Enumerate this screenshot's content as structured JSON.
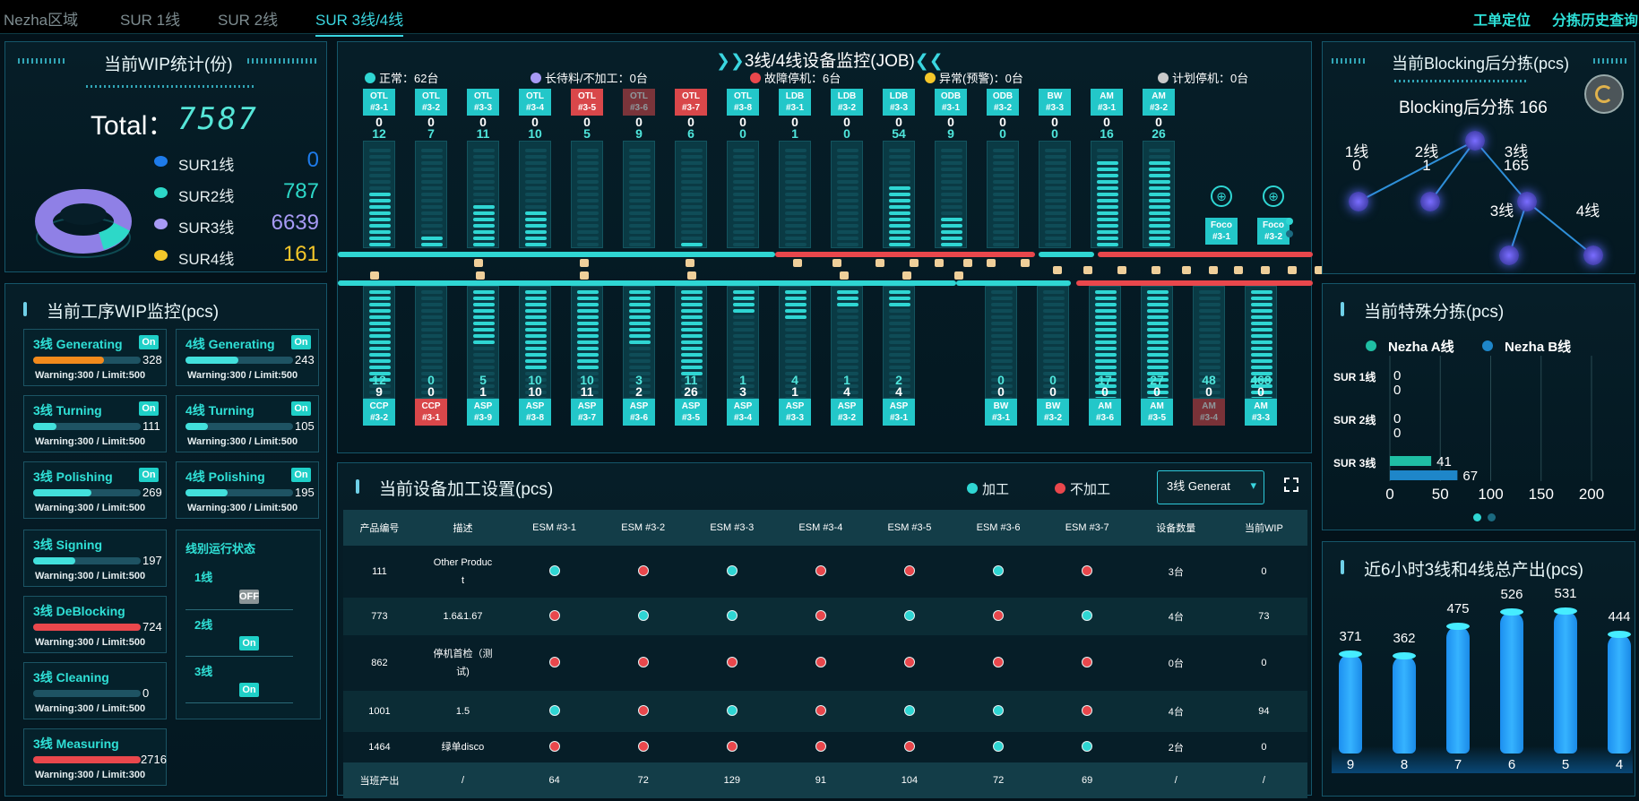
{
  "topbar": {
    "tabs": [
      "Nezha区域",
      "SUR 1线",
      "SUR 2线",
      "SUR 3线/4线"
    ],
    "links": [
      "工单定位",
      "分拣历史查询"
    ]
  },
  "wip": {
    "title": "当前WIP统计(份)",
    "total_label": "Total：",
    "total_value": "7587",
    "legend": [
      {
        "name": "SUR1线",
        "value": "0",
        "color": "#1e7bea"
      },
      {
        "name": "SUR2线",
        "value": "787",
        "color": "#2dd8c8"
      },
      {
        "name": "SUR3线",
        "value": "6639",
        "color": "#a79af5"
      },
      {
        "name": "SUR4线",
        "value": "161",
        "color": "#f5c72a"
      }
    ]
  },
  "process": {
    "title": "当前工序WIP监控(pcs)",
    "cards": [
      {
        "name": "3线 Generating",
        "value": "328",
        "fill": 0.66,
        "color": "#f28a1c",
        "sub": "Warning:300 / Limit:500",
        "state": "On"
      },
      {
        "name": "4线 Generating",
        "value": "243",
        "fill": 0.49,
        "color": "#42e0dc",
        "sub": "Warning:300 / Limit:500",
        "state": "On"
      },
      {
        "name": "3线 Turning",
        "value": "111",
        "fill": 0.22,
        "color": "#42e0dc",
        "sub": "Warning:300 / Limit:500",
        "state": "On"
      },
      {
        "name": "4线 Turning",
        "value": "105",
        "fill": 0.21,
        "color": "#42e0dc",
        "sub": "Warning:300 / Limit:500",
        "state": "On"
      },
      {
        "name": "3线 Polishing",
        "value": "269",
        "fill": 0.54,
        "color": "#42e0dc",
        "sub": "Warning:300 / Limit:500",
        "state": "On"
      },
      {
        "name": "4线 Polishing",
        "value": "195",
        "fill": 0.39,
        "color": "#42e0dc",
        "sub": "Warning:300 / Limit:500",
        "state": "On"
      },
      {
        "name": "3线 Signing",
        "value": "197",
        "fill": 0.39,
        "color": "#42e0dc",
        "sub": "Warning:300 / Limit:500",
        "state": ""
      },
      {
        "name": "3线 DeBlocking",
        "value": "724",
        "fill": 1.0,
        "color": "#e9474c",
        "sub": "Warning:300 / Limit:500",
        "state": ""
      },
      {
        "name": "3线 Cleaning",
        "value": "0",
        "fill": 0.0,
        "color": "#42e0dc",
        "sub": "Warning:300 / Limit:500",
        "state": ""
      },
      {
        "name": "3线 Measuring",
        "value": "2716",
        "fill": 1.0,
        "color": "#e9474c",
        "sub": "Warning:300 / Limit:300",
        "state": ""
      }
    ],
    "line_status": {
      "title": "线别运行状态",
      "lines": [
        {
          "name": "1线",
          "state": "OFF"
        },
        {
          "name": "2线",
          "state": "On"
        },
        {
          "name": "3线",
          "state": "On"
        }
      ]
    }
  },
  "monitor": {
    "title": "3线/4线设备监控(JOB)",
    "legend": [
      {
        "label": "正常：62台",
        "color": "#2fd6d3"
      },
      {
        "label": "长待料/不加工：0台",
        "color": "#a79af5"
      },
      {
        "label": "故障停机：6台",
        "color": "#e9474c"
      },
      {
        "label": "异常(预警)：0台",
        "color": "#f5c72a"
      },
      {
        "label": "计划停机：0台",
        "color": "#c9c9c9"
      }
    ],
    "top": [
      {
        "label": "OTL\n#3-1",
        "a": "0",
        "b": "12",
        "state": "normal",
        "fill": 0.7
      },
      {
        "label": "OTL\n#3-2",
        "a": "0",
        "b": "7",
        "state": "normal",
        "fill": 0.38
      },
      {
        "label": "OTL\n#3-3",
        "a": "0",
        "b": "11",
        "state": "normal",
        "fill": 0.63
      },
      {
        "label": "OTL\n#3-4",
        "a": "0",
        "b": "10",
        "state": "normal",
        "fill": 0.58
      },
      {
        "label": "OTL\n#3-5",
        "a": "0",
        "b": "5",
        "state": "fault",
        "fill": 0.28
      },
      {
        "label": "OTL\n#3-6",
        "a": "0",
        "b": "9",
        "state": "fault-dim",
        "fill": 0.0
      },
      {
        "label": "OTL\n#3-7",
        "a": "0",
        "b": "6",
        "state": "fault",
        "fill": 0.33
      },
      {
        "label": "OTL\n#3-8",
        "a": "0",
        "b": "0",
        "state": "normal",
        "fill": 0.0
      },
      {
        "label": "LDB\n#3-1",
        "a": "0",
        "b": "1",
        "state": "normal",
        "fill": 0.05
      },
      {
        "label": "LDB\n#3-2",
        "a": "0",
        "b": "0",
        "state": "normal",
        "fill": 0.0
      },
      {
        "label": "LDB\n#3-3",
        "a": "0",
        "b": "54",
        "state": "normal",
        "fill": 0.75
      },
      {
        "label": "ODB\n#3-1",
        "a": "0",
        "b": "9",
        "state": "normal",
        "fill": 0.5
      },
      {
        "label": "ODB\n#3-2",
        "a": "0",
        "b": "0",
        "state": "normal",
        "fill": 0.0
      },
      {
        "label": "BW\n#3-3",
        "a": "0",
        "b": "0",
        "state": "normal",
        "fill": 0.0
      },
      {
        "label": "AM\n#3-1",
        "a": "0",
        "b": "16",
        "state": "normal",
        "fill": 0.95
      },
      {
        "label": "AM\n#3-2",
        "a": "0",
        "b": "26",
        "state": "normal",
        "fill": 0.95
      }
    ],
    "foco": [
      "Foco\n#3-1",
      "Foco\n#3-2"
    ],
    "bottom": [
      {
        "label": "CCP\n#3-2",
        "a": "12",
        "b": "9",
        "state": "normal",
        "fill": 0.65
      },
      {
        "label": "CCP\n#3-1",
        "a": "0",
        "b": "0",
        "state": "fault",
        "fill": 0.0
      },
      {
        "label": "ASP\n#3-9",
        "a": "5",
        "b": "1",
        "state": "normal",
        "fill": 0.38
      },
      {
        "label": "ASP\n#3-8",
        "a": "10",
        "b": "10",
        "state": "normal",
        "fill": 0.55
      },
      {
        "label": "ASP\n#3-7",
        "a": "10",
        "b": "11",
        "state": "normal",
        "fill": 0.55
      },
      {
        "label": "ASP\n#3-6",
        "a": "3",
        "b": "2",
        "state": "normal",
        "fill": 0.38
      },
      {
        "label": "ASP\n#3-5",
        "a": "11",
        "b": "26",
        "state": "normal",
        "fill": 0.6
      },
      {
        "label": "ASP\n#3-4",
        "a": "1",
        "b": "3",
        "state": "normal",
        "fill": 0.18
      },
      {
        "label": "ASP\n#3-3",
        "a": "4",
        "b": "1",
        "state": "normal",
        "fill": 0.2
      },
      {
        "label": "ASP\n#3-2",
        "a": "1",
        "b": "4",
        "state": "normal",
        "fill": 0.12
      },
      {
        "label": "ASP\n#3-1",
        "a": "2",
        "b": "4",
        "state": "normal",
        "fill": 0.12
      },
      {
        "label": "BW\n#3-1",
        "a": "0",
        "b": "0",
        "state": "normal",
        "fill": 0.0
      },
      {
        "label": "BW\n#3-2",
        "a": "0",
        "b": "0",
        "state": "normal",
        "fill": 0.0
      },
      {
        "label": "AM\n#3-6",
        "a": "17",
        "b": "0",
        "state": "normal",
        "fill": 0.95
      },
      {
        "label": "AM\n#3-5",
        "a": "27",
        "b": "0",
        "state": "normal",
        "fill": 0.95
      },
      {
        "label": "AM\n#3-4",
        "a": "48",
        "b": "0",
        "state": "fault-dim",
        "fill": 0.0
      },
      {
        "label": "AM\n#3-3",
        "a": "468",
        "b": "0",
        "state": "normal",
        "fill": 0.95
      }
    ]
  },
  "settings": {
    "title": "当前设备加工设置(pcs)",
    "legend": [
      {
        "label": "加工",
        "color": "#2fd6d3"
      },
      {
        "label": "不加工",
        "color": "#e9474c"
      }
    ],
    "select_value": "3线 Generat",
    "columns": [
      "产品编号",
      "描述",
      "ESM #3-1",
      "ESM #3-2",
      "ESM #3-3",
      "ESM #3-4",
      "ESM #3-5",
      "ESM #3-6",
      "ESM #3-7",
      "设备数量",
      "当前WIP"
    ],
    "rows": [
      {
        "id": "111",
        "desc": "Other Produc\nt",
        "dots": [
          "g",
          "r",
          "g",
          "r",
          "r",
          "g",
          "r"
        ],
        "count": "3台",
        "wip": "0"
      },
      {
        "id": "773",
        "desc": "1.6&1.67",
        "dots": [
          "r",
          "g",
          "g",
          "r",
          "g",
          "r",
          "g"
        ],
        "count": "4台",
        "wip": "73"
      },
      {
        "id": "862",
        "desc": "停机首检（测\n试)",
        "dots": [
          "r",
          "r",
          "r",
          "r",
          "r",
          "r",
          "r"
        ],
        "count": "0台",
        "wip": "0"
      },
      {
        "id": "1001",
        "desc": "1.5",
        "dots": [
          "g",
          "r",
          "g",
          "r",
          "g",
          "g",
          "r"
        ],
        "count": "4台",
        "wip": "94"
      },
      {
        "id": "1464",
        "desc": "绿单disco",
        "dots": [
          "r",
          "r",
          "r",
          "r",
          "r",
          "g",
          "g"
        ],
        "count": "2台",
        "wip": "0"
      }
    ],
    "footer": [
      "当班产出",
      "/",
      "64",
      "72",
      "129",
      "91",
      "104",
      "72",
      "69",
      "/",
      "/"
    ]
  },
  "blocking": {
    "title": "当前Blocking后分拣(pcs)",
    "center_label": "Blocking后分拣 166",
    "nodes": [
      {
        "name": "1线",
        "value": "0"
      },
      {
        "name": "2线",
        "value": "1"
      },
      {
        "name": "3线",
        "value": "165"
      },
      {
        "name": "3线",
        "value": ""
      },
      {
        "name": "4线",
        "value": ""
      }
    ]
  },
  "special": {
    "title": "当前特殊分拣(pcs)",
    "series": [
      {
        "name": "Nezha A线",
        "color": "#1fbfa4"
      },
      {
        "name": "Nezha B线",
        "color": "#1e86c9"
      }
    ],
    "chart_data": {
      "type": "bar",
      "orientation": "horizontal",
      "categories": [
        "SUR 1线",
        "SUR 2线",
        "SUR 3线"
      ],
      "series": [
        {
          "name": "Nezha A线",
          "values": [
            0,
            0,
            41
          ]
        },
        {
          "name": "Nezha B线",
          "values": [
            0,
            0,
            67
          ]
        }
      ],
      "xticks": [
        "0",
        "50",
        "100",
        "150",
        "200"
      ],
      "xlim": [
        0,
        200
      ]
    }
  },
  "output": {
    "title": "近6小时3线和4线总产出(pcs)",
    "chart_data": {
      "type": "bar",
      "categories": [
        "9",
        "8",
        "7",
        "6",
        "5",
        "4"
      ],
      "values": [
        371,
        362,
        475,
        526,
        531,
        444
      ],
      "ylim": [
        0,
        600
      ]
    }
  }
}
